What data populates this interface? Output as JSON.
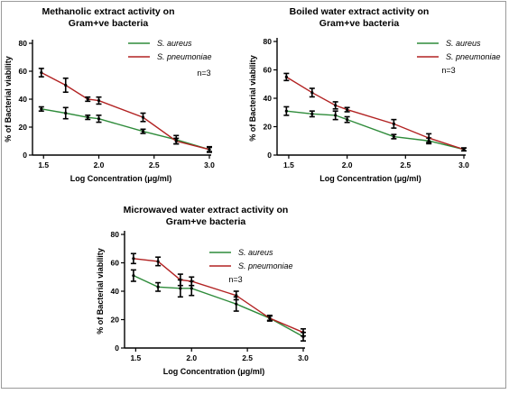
{
  "colors": {
    "s_aureus": "#2e8b3a",
    "s_pneumoniae": "#b22222",
    "axis": "#000000",
    "error": "#000000"
  },
  "chart_data": [
    {
      "id": "methanolic",
      "type": "line",
      "title_lines": [
        "Methanolic extract activity on",
        "Gram+ve bacteria"
      ],
      "xlabel": "Log Concentration (μg/ml)",
      "ylabel": "% of Bacterial viability",
      "xlim": [
        1.4,
        3.0
      ],
      "ylim": [
        0,
        80
      ],
      "xticks": [
        "1.5",
        "2.0",
        "2.5",
        "3.0"
      ],
      "xtick_values": [
        1.5,
        2.0,
        2.5,
        3.0
      ],
      "yticks": [
        "0",
        "20",
        "40",
        "60",
        "80"
      ],
      "ytick_values": [
        0,
        20,
        40,
        60,
        80
      ],
      "note": "n=3",
      "series": [
        {
          "name": "S. aureus",
          "color_key": "s_aureus",
          "x": [
            1.48,
            1.7,
            1.9,
            2.0,
            2.4,
            2.7,
            3.0
          ],
          "y": [
            33,
            30,
            27,
            26,
            17,
            11,
            4
          ],
          "err": [
            1.5,
            4,
            1.5,
            2.5,
            1.5,
            3,
            2
          ]
        },
        {
          "name": "S. pneumoniae",
          "color_key": "s_pneumoniae",
          "x": [
            1.48,
            1.7,
            1.9,
            2.0,
            2.4,
            2.7,
            3.0
          ],
          "y": [
            59,
            50,
            40,
            39,
            27,
            10,
            4
          ],
          "err": [
            3,
            5,
            1.5,
            2.5,
            3,
            2,
            1.5
          ]
        }
      ]
    },
    {
      "id": "boiled",
      "type": "line",
      "title_lines": [
        "Boiled water extract activity on",
        "Gram+ve bacteria"
      ],
      "xlabel": "Log Concentration (μg/ml)",
      "ylabel": "% of Bacterial viability",
      "xlim": [
        1.4,
        3.0
      ],
      "ylim": [
        0,
        80
      ],
      "xticks": [
        "1.5",
        "2.0",
        "2.5",
        "3.0"
      ],
      "xtick_values": [
        1.5,
        2.0,
        2.5,
        3.0
      ],
      "yticks": [
        "0",
        "20",
        "40",
        "60",
        "80"
      ],
      "ytick_values": [
        0,
        20,
        40,
        60,
        80
      ],
      "note": "n=3",
      "series": [
        {
          "name": "S. aureus",
          "color_key": "s_aureus",
          "x": [
            1.48,
            1.7,
            1.9,
            2.0,
            2.4,
            2.7,
            3.0
          ],
          "y": [
            31,
            29,
            28,
            25,
            13,
            10,
            4
          ],
          "err": [
            3,
            2,
            3,
            2,
            1.5,
            2,
            1
          ]
        },
        {
          "name": "S. pneumoniae",
          "color_key": "s_pneumoniae",
          "x": [
            1.48,
            1.7,
            1.9,
            2.0,
            2.4,
            2.7,
            3.0
          ],
          "y": [
            55,
            44,
            35,
            32,
            22,
            12,
            4
          ],
          "err": [
            2.5,
            3,
            2.5,
            1.5,
            3,
            3,
            1
          ]
        }
      ]
    },
    {
      "id": "microwaved",
      "type": "line",
      "title_lines": [
        "Microwaved water extract activity on",
        "Gram+ve bacteria"
      ],
      "xlabel": "Log Concentration (μg/ml)",
      "ylabel": "% of Bacterial viability",
      "xlim": [
        1.4,
        3.0
      ],
      "ylim": [
        0,
        80
      ],
      "xticks": [
        "1.5",
        "2.0",
        "2.5",
        "3.0"
      ],
      "xtick_values": [
        1.5,
        2.0,
        2.5,
        3.0
      ],
      "yticks": [
        "0",
        "20",
        "40",
        "60",
        "80"
      ],
      "ytick_values": [
        0,
        20,
        40,
        60,
        80
      ],
      "note": "n=3",
      "series": [
        {
          "name": "S. aureus",
          "color_key": "s_aureus",
          "x": [
            1.48,
            1.7,
            1.9,
            2.0,
            2.4,
            2.7,
            3.0
          ],
          "y": [
            51,
            43,
            42,
            42,
            31,
            21,
            8
          ],
          "err": [
            4,
            3,
            6,
            5,
            5,
            2,
            3
          ]
        },
        {
          "name": "S. pneumoniae",
          "color_key": "s_pneumoniae",
          "x": [
            1.48,
            1.7,
            1.9,
            2.0,
            2.4,
            2.7,
            3.0
          ],
          "y": [
            63,
            61,
            48,
            47,
            37,
            21,
            11
          ],
          "err": [
            3.5,
            3,
            4,
            3,
            3,
            1.5,
            2.5
          ]
        }
      ]
    }
  ]
}
